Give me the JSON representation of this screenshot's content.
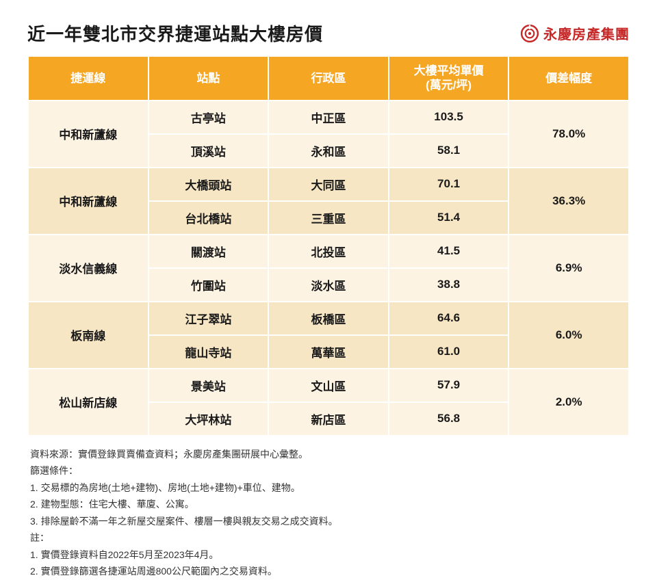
{
  "title": "近一年雙北市交界捷運站點大樓房價",
  "brand": "永慶房產集團",
  "brand_color": "#c62828",
  "header_bg": "#f5a623",
  "row_light_bg": "#fdf3e3",
  "row_dark_bg": "#f7e6c4",
  "columns": [
    "捷運線",
    "站點",
    "行政區",
    "大樓平均單價\n(萬元/坪)",
    "價差幅度"
  ],
  "col_widths": [
    "20%",
    "20%",
    "20%",
    "20%",
    "20%"
  ],
  "groups": [
    {
      "line": "中和新蘆線",
      "diff": "78.0%",
      "shade": "light",
      "rows": [
        {
          "station": "古亭站",
          "district": "中正區",
          "price": "103.5"
        },
        {
          "station": "頂溪站",
          "district": "永和區",
          "price": "58.1"
        }
      ]
    },
    {
      "line": "中和新蘆線",
      "diff": "36.3%",
      "shade": "dark",
      "rows": [
        {
          "station": "大橋頭站",
          "district": "大同區",
          "price": "70.1"
        },
        {
          "station": "台北橋站",
          "district": "三重區",
          "price": "51.4"
        }
      ]
    },
    {
      "line": "淡水信義線",
      "diff": "6.9%",
      "shade": "light",
      "rows": [
        {
          "station": "關渡站",
          "district": "北投區",
          "price": "41.5"
        },
        {
          "station": "竹圍站",
          "district": "淡水區",
          "price": "38.8"
        }
      ]
    },
    {
      "line": "板南線",
      "diff": "6.0%",
      "shade": "dark",
      "rows": [
        {
          "station": "江子翠站",
          "district": "板橋區",
          "price": "64.6"
        },
        {
          "station": "龍山寺站",
          "district": "萬華區",
          "price": "61.0"
        }
      ]
    },
    {
      "line": "松山新店線",
      "diff": "2.0%",
      "shade": "light",
      "rows": [
        {
          "station": "景美站",
          "district": "文山區",
          "price": "57.9"
        },
        {
          "station": "大坪林站",
          "district": "新店區",
          "price": "56.8"
        }
      ]
    }
  ],
  "notes": [
    "資料來源：實價登錄買賣備查資料；永慶房產集團研展中心彙整。",
    "篩選條件：",
    "1. 交易標的為房地(土地+建物)、房地(土地+建物)+車位、建物。",
    "2. 建物型態：住宅大樓、華廈、公寓。",
    "3. 排除屋齡不滿一年之新屋交屋案件、樓層一樓與親友交易之成交資料。",
    "註：",
    "1. 實價登錄資料自2022年5月至2023年4月。",
    "2. 實價登錄篩選各捷運站周邊800公尺範圍內之交易資料。"
  ]
}
